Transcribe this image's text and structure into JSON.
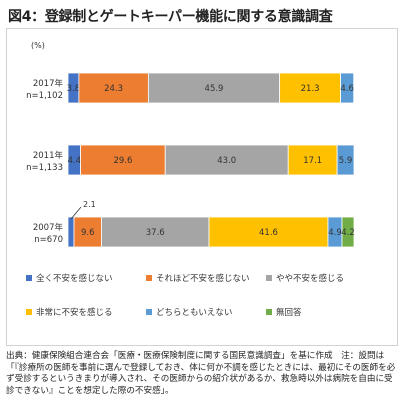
{
  "title": "図4：登録制とゲートキーパー機能に関する意識調査",
  "chart_data": {
    "type": "bar",
    "orientation": "horizontal",
    "stacked": true,
    "unit": "(%)",
    "categories": [
      {
        "year": "2017年",
        "n": "n=1,102"
      },
      {
        "year": "2011年",
        "n": "n=1,133"
      },
      {
        "year": "2007年",
        "n": "n=670"
      }
    ],
    "series": [
      {
        "name": "全く不安を感じない",
        "color": "#4472c4",
        "values": [
          3.8,
          4.4,
          2.1
        ]
      },
      {
        "name": "それほど不安を感じない",
        "color": "#ed7d31",
        "values": [
          24.3,
          29.6,
          9.6
        ]
      },
      {
        "name": "やや不安を感じる",
        "color": "#a5a5a5",
        "values": [
          45.9,
          43.0,
          37.6
        ]
      },
      {
        "name": "非常に不安を感じる",
        "color": "#ffc000",
        "values": [
          21.3,
          17.1,
          41.6
        ]
      },
      {
        "name": "どちらともいえない",
        "color": "#5b9bd5",
        "values": [
          4.6,
          5.9,
          4.9
        ]
      },
      {
        "name": "無回答",
        "color": "#70ad47",
        "values": [
          null,
          null,
          4.2
        ]
      }
    ],
    "xlim": [
      0,
      100
    ],
    "callout_label": "2.1",
    "legend_position": "bottom"
  },
  "source_text": "出典：健康保険組合連合会「医療・医療保険制度に関する国民意識調査」を基に作成　注：設問は「『診療所の医師を事前に選んで登録しておき、体に何か不調を感じたときには、最初にその医師を必ず受診するというきまりが導入され、その医師からの紹介状があるか、救急時以外は病院を自由に受診できない』ことを想定した際の不安感」。"
}
